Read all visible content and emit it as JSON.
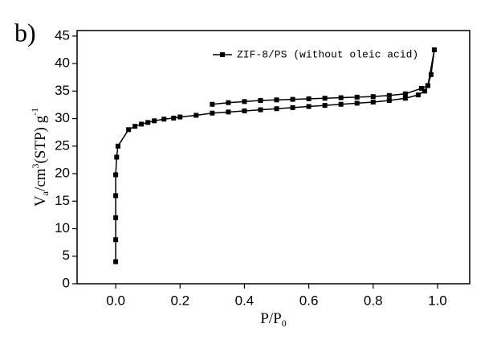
{
  "chart_data": {
    "type": "line",
    "panel_label": "b)",
    "xlabel": [
      "P/P",
      "0"
    ],
    "ylabel": [
      "V",
      "a",
      "/cm",
      "3",
      "(STP) g",
      "-1"
    ],
    "x": [
      0.0,
      0.0,
      0.0,
      0.0,
      0.0,
      0.003,
      0.007,
      0.04,
      0.06,
      0.08,
      0.1,
      0.12,
      0.15,
      0.18,
      0.2,
      0.25,
      0.3,
      0.35,
      0.4,
      0.45,
      0.5,
      0.55,
      0.6,
      0.65,
      0.7,
      0.75,
      0.8,
      0.85,
      0.9,
      0.94,
      0.96,
      0.97,
      0.98,
      0.99,
      0.97,
      0.95,
      0.9,
      0.85,
      0.8,
      0.75,
      0.7,
      0.65,
      0.6,
      0.55,
      0.5,
      0.45,
      0.4,
      0.35,
      0.3
    ],
    "series": [
      {
        "name": "ZIF-8/PS (without oleic acid)",
        "color": "#000000",
        "values": [
          4,
          8,
          12,
          16,
          19.8,
          23,
          25,
          28,
          28.6,
          29,
          29.3,
          29.6,
          29.9,
          30.1,
          30.3,
          30.6,
          31,
          31.2,
          31.4,
          31.6,
          31.8,
          32,
          32.2,
          32.4,
          32.6,
          32.8,
          33,
          33.3,
          33.7,
          34.3,
          35,
          36,
          38,
          42.5,
          36,
          35.5,
          34.5,
          34.2,
          34,
          33.9,
          33.8,
          33.7,
          33.6,
          33.5,
          33.4,
          33.3,
          33.1,
          32.9,
          32.6
        ]
      }
    ],
    "xlim": [
      -0.12,
      1.1
    ],
    "ylim": [
      0,
      46
    ],
    "xticks": [
      {
        "value": 0,
        "label": "0.0"
      },
      0.2,
      0.4,
      0.6,
      0.8,
      {
        "value": 1,
        "label": "1.0"
      }
    ],
    "yticks": [
      0,
      5,
      10,
      15,
      20,
      25,
      30,
      35,
      40,
      45
    ],
    "legend": "upper right"
  }
}
